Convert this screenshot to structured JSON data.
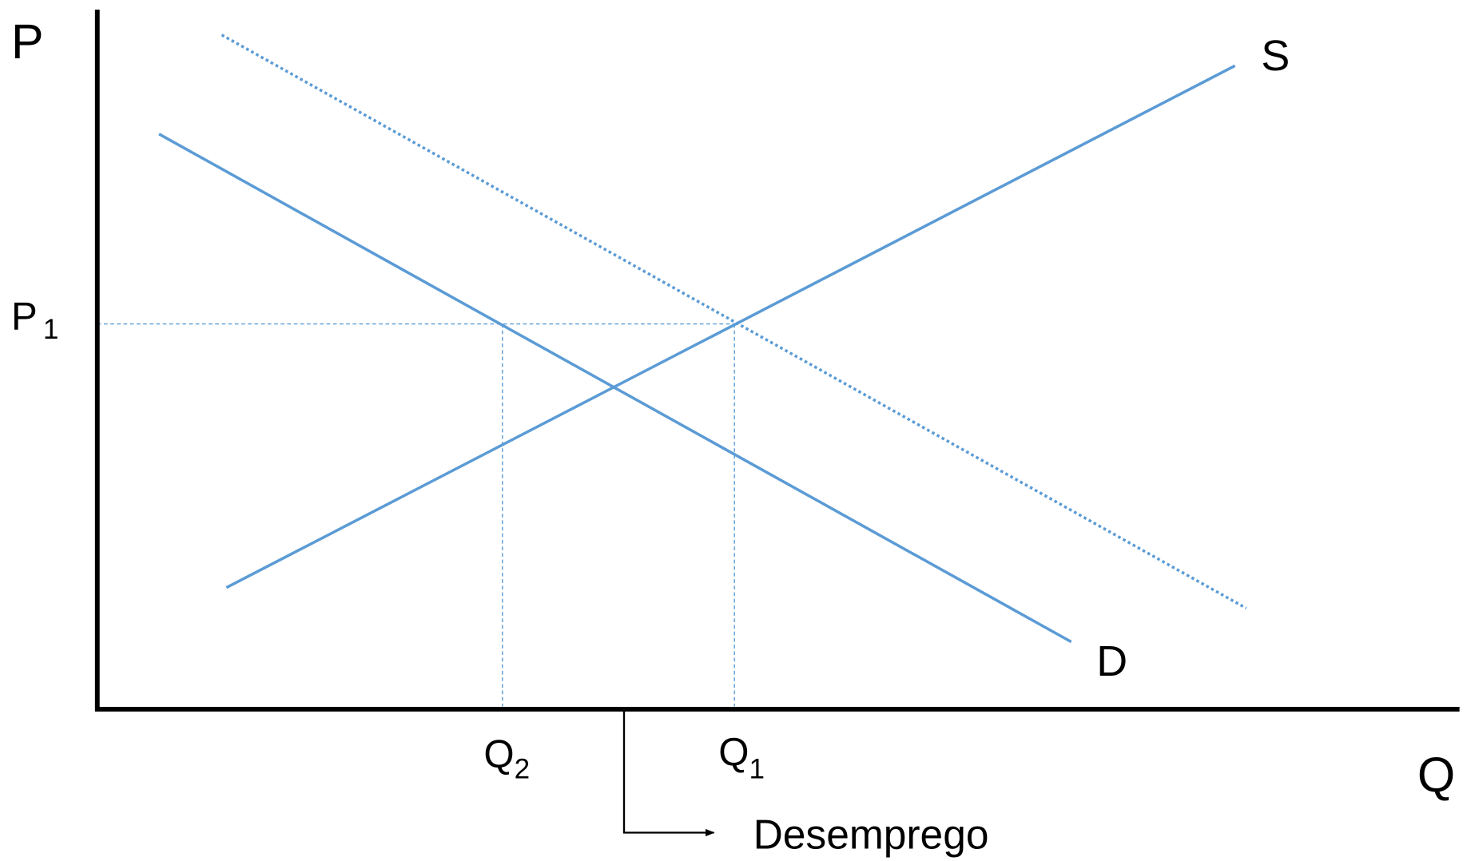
{
  "labels": {
    "price_axis": "P",
    "quantity_axis": "Q",
    "supply": "S",
    "demand": "D",
    "price_level": {
      "text": "P",
      "subscript": "1"
    },
    "quantity_1": {
      "text": "Q",
      "subscript": "1"
    },
    "quantity_2": {
      "text": "Q",
      "subscript": "2"
    },
    "annotation": "Desemprego"
  }
}
